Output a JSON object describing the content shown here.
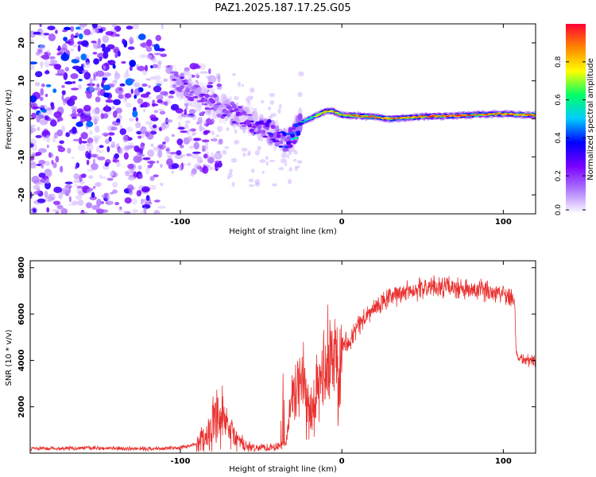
{
  "figure": {
    "title": "PAZ1.2025.187.17.25.G05"
  },
  "colors": {
    "line": "#e8312f",
    "frame": "#000000"
  },
  "chart_data": [
    {
      "type": "heatmap",
      "xlabel": "Height of straight line (km)",
      "ylabel": "Frequency (Hz)",
      "xlim": [
        -193,
        120
      ],
      "ylim": [
        -25,
        25
      ],
      "xticks": [
        -100,
        0,
        100
      ],
      "yticks": [
        -20,
        -10,
        0,
        10,
        20
      ],
      "grid": false,
      "colorbar": {
        "label": "Normalized spectral amplitude",
        "range": [
          0,
          1
        ],
        "ticks": [
          0.0,
          0.2,
          0.4,
          0.6,
          0.8
        ],
        "tick_labels": [
          "0.0",
          "0.2",
          "0.4",
          "0.6",
          "0.8"
        ],
        "colormap": [
          "#ffffff",
          "#b07cff",
          "#7a00ff",
          "#0000ff",
          "#00ccff",
          "#00ff66",
          "#ffff00",
          "#ff8800",
          "#ff0033"
        ]
      },
      "ridge": {
        "x": [
          -105,
          -95,
          -85,
          -75,
          -65,
          -55,
          -45,
          -35,
          -30,
          -25,
          -20,
          -15,
          -10,
          -5,
          0,
          10,
          20,
          30,
          40,
          50,
          60,
          70,
          80,
          90,
          100,
          110,
          120
        ],
        "y": [
          10,
          8,
          5,
          3,
          1,
          -1,
          -3,
          -6,
          -4,
          -1,
          0,
          1,
          2,
          2,
          1,
          0.8,
          0.5,
          0,
          0.3,
          0.6,
          0.7,
          0.8,
          1,
          1.2,
          1.3,
          1.1,
          1
        ],
        "amplitude": [
          0.2,
          0.2,
          0.2,
          0.22,
          0.22,
          0.25,
          0.3,
          0.3,
          0.4,
          0.55,
          0.6,
          0.75,
          0.85,
          0.85,
          0.9,
          0.9,
          0.9,
          0.9,
          0.9,
          0.92,
          0.95,
          0.95,
          0.95,
          0.95,
          0.92,
          0.9,
          0.9
        ]
      }
    },
    {
      "type": "line",
      "xlabel": "Height of straight line (km)",
      "ylabel": "SNR (10 * v/v)",
      "xlim": [
        -193,
        120
      ],
      "ylim": [
        0,
        8300
      ],
      "xticks": [
        -100,
        0,
        100
      ],
      "yticks": [
        2000,
        4000,
        6000,
        8000
      ],
      "grid": false,
      "series": [
        {
          "x": [
            -193,
            -180,
            -160,
            -140,
            -120,
            -100,
            -90,
            -85,
            -80,
            -75,
            -70,
            -65,
            -60,
            -55,
            -50,
            -45,
            -40,
            -35,
            -30,
            -26,
            -22,
            -18,
            -15,
            -12,
            -10,
            -6,
            -3,
            0,
            5,
            10,
            15,
            20,
            25,
            30,
            40,
            50,
            60,
            70,
            80,
            90,
            100,
            105,
            107,
            108,
            110,
            115,
            120
          ],
          "y": [
            200,
            200,
            220,
            200,
            190,
            220,
            400,
            700,
            1100,
            1400,
            1000,
            600,
            300,
            200,
            250,
            250,
            300,
            400,
            2500,
            3000,
            2200,
            1800,
            2600,
            3300,
            3600,
            4000,
            4300,
            4700,
            4900,
            5500,
            5900,
            6200,
            6500,
            6700,
            7000,
            7100,
            7200,
            7100,
            7000,
            7000,
            6900,
            6800,
            6600,
            4300,
            4100,
            4000,
            4000
          ]
        }
      ]
    }
  ]
}
